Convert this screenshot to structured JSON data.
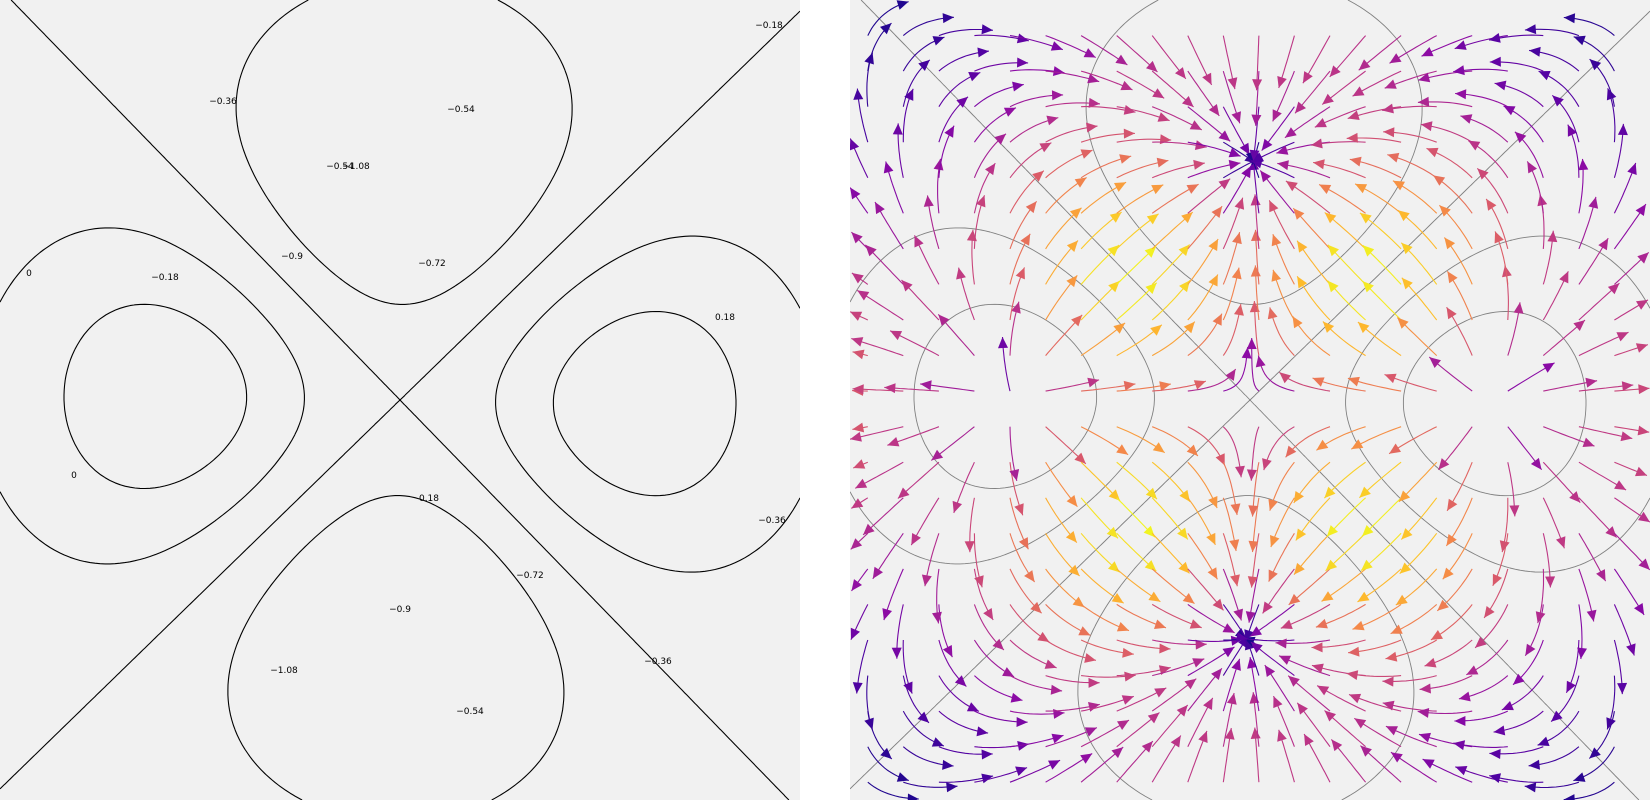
{
  "chart_data": [
    {
      "type": "contour",
      "title": "",
      "xlabel": "",
      "ylabel": "",
      "grid": false,
      "legend": "none",
      "line_color": "#000000",
      "background": "#f1f1f1",
      "levels": [
        -1.08,
        -0.9,
        -0.72,
        -0.54,
        -0.36,
        -0.18,
        0,
        0.18
      ],
      "labels": [
        {
          "text": "−1.08",
          "level": -1.08
        },
        {
          "text": "−0.9",
          "level": -0.9
        },
        {
          "text": "−0.72",
          "level": -0.72
        },
        {
          "text": "−0.54",
          "level": -0.54
        },
        {
          "text": "−0.36",
          "level": -0.36
        },
        {
          "text": "−0.18",
          "level": -0.18
        },
        {
          "text": "0",
          "level": 0
        },
        {
          "text": "0.18",
          "level": 0.18
        },
        {
          "text": "0",
          "level": 0
        },
        {
          "text": "0.18",
          "level": 0.18
        },
        {
          "text": "−0.72",
          "level": -0.72
        },
        {
          "text": "−0.9",
          "level": -0.9
        },
        {
          "text": "−1.08",
          "level": -1.08
        },
        {
          "text": "−0.36",
          "level": -0.36
        },
        {
          "text": "−0.54",
          "level": -0.54
        },
        {
          "text": "−0.18",
          "level": -0.18
        },
        {
          "text": "−0.36",
          "level": -0.36
        },
        {
          "text": "−0.54",
          "level": -0.54
        }
      ]
    },
    {
      "type": "streamplot",
      "title": "",
      "xlabel": "",
      "ylabel": "",
      "grid": false,
      "legend": "none",
      "colormap": "plasma",
      "contour_color": "#808080",
      "background": "#f1f1f1",
      "levels": [
        -1.08,
        -0.9,
        -0.72,
        -0.54,
        -0.36,
        -0.18,
        0,
        0.18
      ]
    }
  ]
}
